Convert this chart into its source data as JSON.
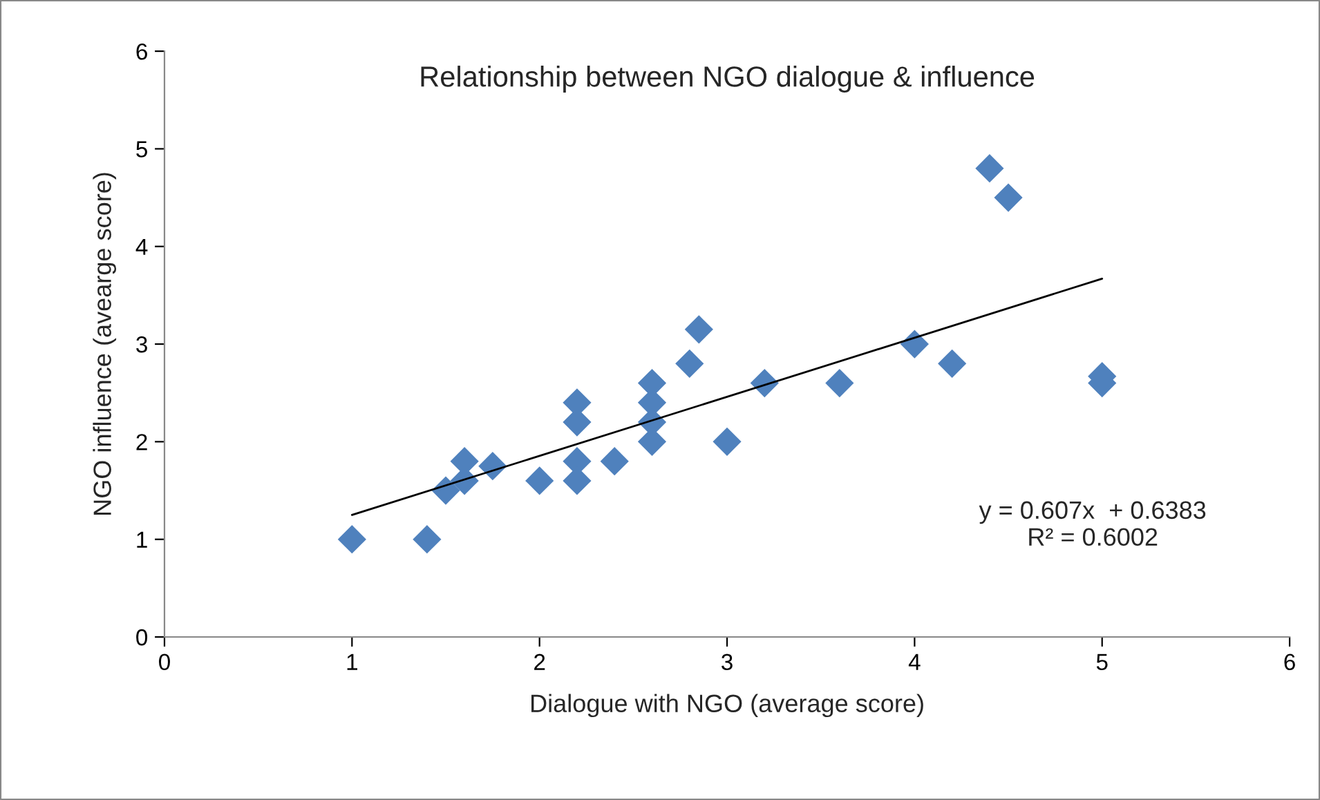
{
  "chart_data": {
    "type": "scatter",
    "title": "Relationship between NGO dialogue & influence",
    "xlabel": "Dialogue with NGO (average score)",
    "ylabel": "NGO influence (avearge score)",
    "xlim": [
      0,
      6
    ],
    "xticks": [
      0,
      1,
      2,
      3,
      4,
      5,
      6
    ],
    "ylim": [
      0,
      6
    ],
    "yticks": [
      0,
      1,
      2,
      3,
      4,
      5,
      6
    ],
    "grid": false,
    "legend": false,
    "marker": "diamond",
    "annotations": [
      "y = 0.607x  + 0.6383\nR² = 0.6002"
    ],
    "series": [
      {
        "color": "#4f81bd",
        "x": [
          1,
          1.4,
          1.5,
          1.6,
          1.6,
          1.75,
          2,
          2.2,
          2.2,
          2.2,
          2.2,
          2.4,
          2.6,
          2.6,
          2.6,
          2.6,
          2.8,
          2.85,
          3,
          3.2,
          3.6,
          4,
          4.2,
          4.4,
          4.5,
          5,
          5
        ],
        "values": [
          1,
          1,
          1.5,
          1.6,
          1.8,
          1.75,
          1.6,
          2.4,
          2.2,
          1.8,
          1.6,
          1.8,
          2.6,
          2.4,
          2.2,
          2.0,
          2.8,
          3.15,
          2,
          2.6,
          2.6,
          3,
          2.8,
          4.8,
          4.5,
          2.67,
          2.6
        ]
      },
      {
        "type": "line",
        "marker": "none",
        "color": "#000000",
        "x": [
          1,
          5
        ],
        "values": [
          1.25,
          3.67
        ]
      }
    ]
  }
}
